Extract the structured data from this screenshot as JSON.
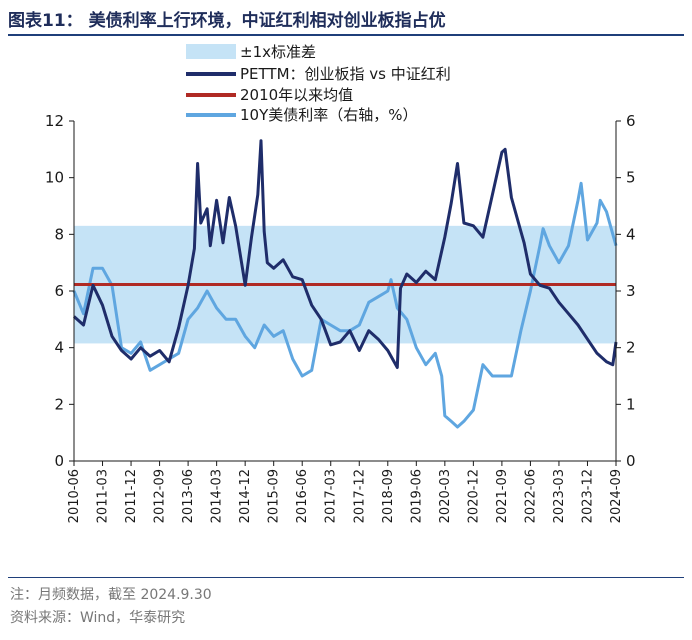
{
  "header": {
    "title": "图表11：  美债利率上行环境，中证红利相对创业板指占优"
  },
  "footer": {
    "note": "注：月频数据，截至 2024.9.30",
    "source": "资料来源：Wind，华泰研究"
  },
  "colors": {
    "band": "#c5e3f6",
    "pe_ratio": "#1f2d6a",
    "mean": "#b02a24",
    "yield": "#5fa6e0"
  },
  "chart_data": {
    "type": "line",
    "legend": [
      {
        "key": "band",
        "label": "±1x标准差"
      },
      {
        "key": "pe_ratio",
        "label": "PETTM：创业板指 vs 中证红利"
      },
      {
        "key": "mean",
        "label": "2010年以来均值"
      },
      {
        "key": "yield",
        "label": "10Y美债利率（右轴，%）"
      }
    ],
    "legend_position": "top",
    "left_axis": {
      "min": 0,
      "max": 12,
      "ticks": [
        "0",
        "2",
        "4",
        "6",
        "8",
        "10",
        "12"
      ]
    },
    "right_axis": {
      "min": 0,
      "max": 6,
      "ticks": [
        "0",
        "1",
        "2",
        "3",
        "4",
        "5",
        "6"
      ]
    },
    "x_ticks": [
      "2010-06",
      "2011-03",
      "2011-12",
      "2012-09",
      "2013-06",
      "2014-03",
      "2014-12",
      "2015-09",
      "2016-06",
      "2017-03",
      "2017-12",
      "2018-09",
      "2019-06",
      "2020-03",
      "2020-12",
      "2021-09",
      "2022-06",
      "2023-03",
      "2023-12",
      "2024-09"
    ],
    "band": {
      "lower": 4.15,
      "upper": 8.3
    },
    "mean_value": 6.23,
    "pe_ratio_series": {
      "x": [
        "2010-06",
        "2010-09",
        "2010-12",
        "2011-03",
        "2011-06",
        "2011-09",
        "2011-12",
        "2012-03",
        "2012-06",
        "2012-09",
        "2012-12",
        "2013-03",
        "2013-06",
        "2013-08",
        "2013-09",
        "2013-10",
        "2013-12",
        "2014-01",
        "2014-03",
        "2014-05",
        "2014-07",
        "2014-09",
        "2014-12",
        "2015-02",
        "2015-04",
        "2015-05",
        "2015-06",
        "2015-07",
        "2015-09",
        "2015-12",
        "2016-03",
        "2016-06",
        "2016-09",
        "2016-12",
        "2017-03",
        "2017-06",
        "2017-09",
        "2017-12",
        "2018-03",
        "2018-06",
        "2018-09",
        "2018-12",
        "2019-01",
        "2019-03",
        "2019-06",
        "2019-09",
        "2019-12",
        "2020-03",
        "2020-05",
        "2020-07",
        "2020-09",
        "2020-12",
        "2021-03",
        "2021-06",
        "2021-09",
        "2021-10",
        "2021-12",
        "2022-03",
        "2022-04",
        "2022-06",
        "2022-09",
        "2022-12",
        "2023-03",
        "2023-06",
        "2023-09",
        "2023-12",
        "2024-03",
        "2024-06",
        "2024-08",
        "2024-09"
      ],
      "values": [
        5.1,
        4.8,
        6.2,
        5.5,
        4.4,
        3.9,
        3.6,
        4.0,
        3.7,
        3.9,
        3.5,
        4.7,
        6.2,
        7.5,
        10.5,
        8.4,
        8.9,
        7.6,
        9.2,
        7.7,
        9.3,
        8.3,
        6.2,
        7.9,
        9.4,
        11.3,
        8.1,
        7.0,
        6.8,
        7.1,
        6.5,
        6.4,
        5.5,
        5.0,
        4.1,
        4.2,
        4.6,
        3.9,
        4.6,
        4.3,
        3.9,
        3.3,
        6.1,
        6.6,
        6.3,
        6.7,
        6.4,
        7.9,
        9.1,
        10.5,
        8.4,
        8.3,
        7.9,
        9.4,
        10.9,
        11.0,
        9.3,
        8.1,
        7.7,
        6.6,
        6.2,
        6.1,
        5.6,
        5.2,
        4.8,
        4.3,
        3.8,
        3.5,
        3.4,
        4.2
      ]
    },
    "yield_series": {
      "x": [
        "2010-06",
        "2010-09",
        "2010-12",
        "2011-03",
        "2011-06",
        "2011-09",
        "2011-12",
        "2012-03",
        "2012-06",
        "2012-09",
        "2012-12",
        "2013-03",
        "2013-06",
        "2013-09",
        "2013-12",
        "2014-03",
        "2014-06",
        "2014-09",
        "2014-12",
        "2015-03",
        "2015-06",
        "2015-09",
        "2015-12",
        "2016-03",
        "2016-06",
        "2016-09",
        "2016-12",
        "2017-03",
        "2017-06",
        "2017-09",
        "2017-12",
        "2018-03",
        "2018-06",
        "2018-09",
        "2018-10",
        "2018-12",
        "2019-03",
        "2019-06",
        "2019-09",
        "2019-12",
        "2020-02",
        "2020-03",
        "2020-05",
        "2020-07",
        "2020-09",
        "2020-12",
        "2021-03",
        "2021-06",
        "2021-09",
        "2021-12",
        "2022-03",
        "2022-06",
        "2022-09",
        "2022-10",
        "2022-12",
        "2023-03",
        "2023-06",
        "2023-09",
        "2023-10",
        "2023-12",
        "2024-03",
        "2024-04",
        "2024-06",
        "2024-09"
      ],
      "values": [
        3.0,
        2.6,
        3.4,
        3.4,
        3.1,
        2.0,
        1.9,
        2.1,
        1.6,
        1.7,
        1.8,
        1.9,
        2.5,
        2.7,
        3.0,
        2.7,
        2.5,
        2.5,
        2.2,
        2.0,
        2.4,
        2.2,
        2.3,
        1.8,
        1.5,
        1.6,
        2.5,
        2.4,
        2.3,
        2.3,
        2.4,
        2.8,
        2.9,
        3.0,
        3.2,
        2.7,
        2.5,
        2.0,
        1.7,
        1.9,
        1.5,
        0.8,
        0.7,
        0.6,
        0.7,
        0.9,
        1.7,
        1.5,
        1.5,
        1.5,
        2.3,
        3.0,
        3.8,
        4.1,
        3.8,
        3.5,
        3.8,
        4.6,
        4.9,
        3.9,
        4.2,
        4.6,
        4.4,
        3.8
      ]
    }
  }
}
